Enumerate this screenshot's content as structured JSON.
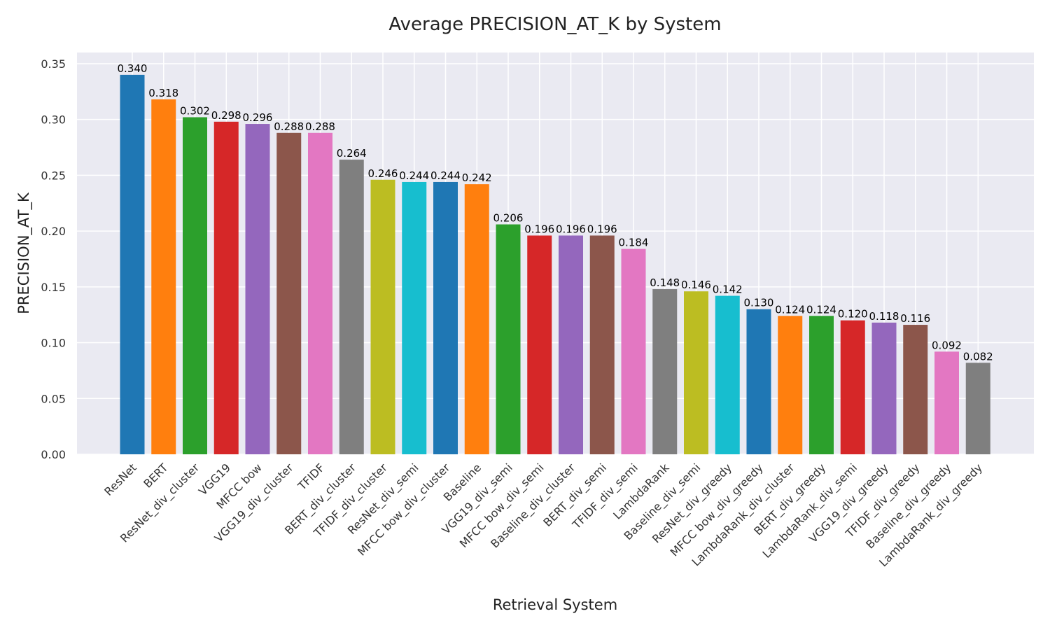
{
  "chart_data": {
    "type": "bar",
    "title": "Average PRECISION_AT_K by System",
    "xlabel": "Retrieval System",
    "ylabel": "PRECISION_AT_K",
    "ylim": [
      0,
      0.36
    ],
    "yticks": [
      "0.00",
      "0.05",
      "0.10",
      "0.15",
      "0.20",
      "0.25",
      "0.30",
      "0.35"
    ],
    "grid": true,
    "categories": [
      "ResNet",
      "BERT",
      "ResNet_div_cluster",
      "VGG19",
      "MFCC bow",
      "VGG19_div_cluster",
      "TFIDF",
      "BERT_div_cluster",
      "TFIDF_div_cluster",
      "ResNet_div_semi",
      "MFCC bow_div_cluster",
      "Baseline",
      "VGG19_div_semi",
      "MFCC bow_div_semi",
      "Baseline_div_cluster",
      "BERT_div_semi",
      "TFIDF_div_semi",
      "LambdaRank",
      "Baseline_div_semi",
      "ResNet_div_greedy",
      "MFCC bow_div_greedy",
      "LambdaRank_div_cluster",
      "BERT_div_greedy",
      "LambdaRank_div_semi",
      "VGG19_div_greedy",
      "TFIDF_div_greedy",
      "Baseline_div_greedy",
      "LambdaRank_div_greedy"
    ],
    "values": [
      0.34,
      0.318,
      0.302,
      0.298,
      0.296,
      0.288,
      0.288,
      0.264,
      0.246,
      0.244,
      0.244,
      0.242,
      0.206,
      0.196,
      0.196,
      0.196,
      0.184,
      0.148,
      0.146,
      0.142,
      0.13,
      0.124,
      0.124,
      0.12,
      0.118,
      0.116,
      0.092,
      0.082
    ],
    "value_labels": [
      "0.340",
      "0.318",
      "0.302",
      "0.298",
      "0.296",
      "0.288",
      "0.288",
      "0.264",
      "0.246",
      "0.244",
      "0.244",
      "0.242",
      "0.206",
      "0.196",
      "0.196",
      "0.196",
      "0.184",
      "0.148",
      "0.146",
      "0.142",
      "0.130",
      "0.124",
      "0.124",
      "0.120",
      "0.118",
      "0.116",
      "0.092",
      "0.082"
    ],
    "colors": [
      "#1f77b4",
      "#ff7f0e",
      "#2ca02c",
      "#d62728",
      "#9467bd",
      "#8c564b",
      "#e377c2",
      "#7f7f7f",
      "#bcbd22",
      "#17becf"
    ],
    "plot_background": "#eaeaf2",
    "grid_color": "#ffffff"
  }
}
